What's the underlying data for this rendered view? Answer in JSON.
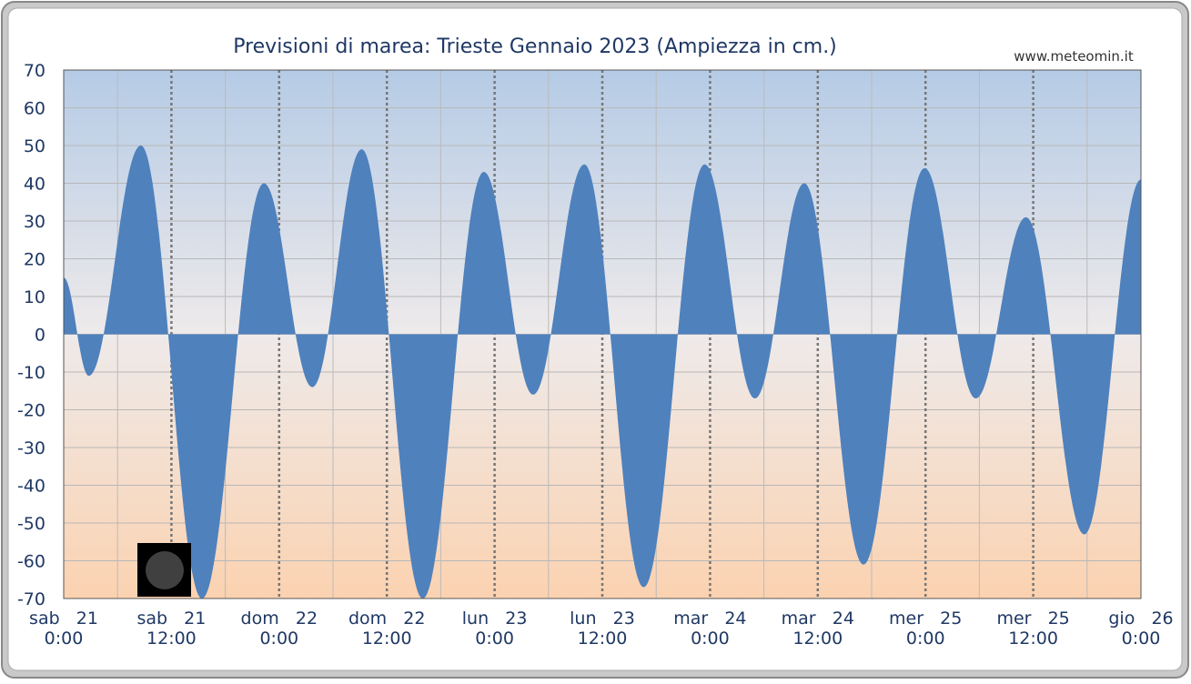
{
  "chart_data": {
    "type": "area",
    "title": "Previsioni di marea: Trieste Gennaio 2023 (Ampiezza in cm.)",
    "source": "www.meteomin.it",
    "x": [
      0,
      2.8,
      8.6,
      15.4,
      22.3,
      27.7,
      33.2,
      40.0,
      46.8,
      52.3,
      58.0,
      64.6,
      71.4,
      77.0,
      82.5,
      89.1,
      95.9,
      101.6,
      107.2,
      113.7,
      120
    ],
    "values": [
      15,
      -11,
      50,
      -70,
      40,
      -14,
      49,
      -70,
      43,
      -16,
      45,
      -67,
      45,
      -17,
      40,
      -61,
      44,
      -17,
      31,
      -53,
      41
    ],
    "color": "#4f81bd",
    "xlim": [
      0,
      120
    ],
    "xticks": [
      {
        "value": 0,
        "label": "sab   21"
      },
      {
        "value": 12,
        "label": "sab   21"
      },
      {
        "value": 24,
        "label": "dom   22"
      },
      {
        "value": 36,
        "label": "dom   22"
      },
      {
        "value": 48,
        "label": "lun   23"
      },
      {
        "value": 60,
        "label": "lun   23"
      },
      {
        "value": 72,
        "label": "mar   24"
      },
      {
        "value": 84,
        "label": "mar   24"
      },
      {
        "value": 96,
        "label": "mer   25"
      },
      {
        "value": 108,
        "label": "mer   25"
      },
      {
        "value": 120,
        "label": "gio   26"
      }
    ],
    "xtick_times": [
      "0:00",
      "12:00",
      "0:00",
      "12:00",
      "0:00",
      "12:00",
      "0:00",
      "12:00",
      "0:00",
      "12:00",
      "0:00"
    ],
    "ylim": [
      -70,
      70
    ],
    "yticks": [
      -70,
      -60,
      -50,
      -40,
      -30,
      -20,
      -10,
      0,
      10,
      20,
      30,
      40,
      50,
      60,
      70
    ],
    "grid": true
  }
}
